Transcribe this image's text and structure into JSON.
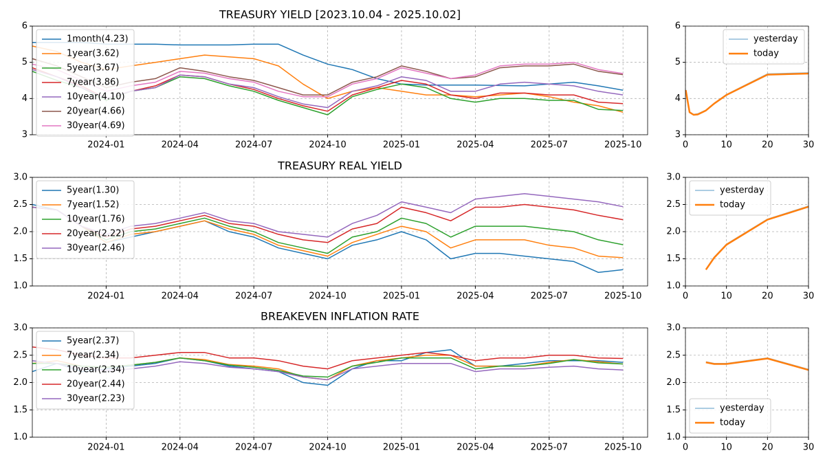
{
  "chart_data": [
    {
      "type": "line",
      "title": "TREASURY YIELD [2023.10.04 - 2025.10.02]",
      "x": [
        "2023-10",
        "2023-11",
        "2023-12",
        "2024-01",
        "2024-02",
        "2024-03",
        "2024-04",
        "2024-05",
        "2024-06",
        "2024-07",
        "2024-08",
        "2024-09",
        "2024-10",
        "2024-11",
        "2024-12",
        "2025-01",
        "2025-02",
        "2025-03",
        "2025-04",
        "2025-05",
        "2025-06",
        "2025-07",
        "2025-08",
        "2025-09",
        "2025-10"
      ],
      "xlim": [
        "2023-10",
        "2025-11"
      ],
      "xticks": [
        "2024-01",
        "2024-04",
        "2024-07",
        "2024-10",
        "2025-01",
        "2025-04",
        "2025-07",
        "2025-10"
      ],
      "ylim": [
        3,
        6
      ],
      "yticks": [
        3,
        4,
        5,
        6
      ],
      "grid": true,
      "legend": "upper left",
      "series": [
        {
          "name": "1month(4.23)",
          "color": "#1f77b4",
          "values": [
            5.55,
            5.55,
            5.55,
            5.5,
            5.5,
            5.5,
            5.48,
            5.48,
            5.48,
            5.5,
            5.5,
            5.2,
            4.95,
            4.8,
            4.55,
            4.4,
            4.37,
            4.37,
            4.37,
            4.36,
            4.35,
            4.4,
            4.45,
            4.35,
            4.23
          ]
        },
        {
          "name": "1year(3.62)",
          "color": "#ff7f0e",
          "values": [
            5.45,
            5.3,
            5.0,
            4.8,
            4.9,
            5.0,
            5.1,
            5.2,
            5.15,
            5.1,
            4.9,
            4.4,
            4.0,
            4.2,
            4.3,
            4.2,
            4.1,
            4.1,
            4.05,
            4.1,
            4.15,
            4.05,
            3.9,
            3.8,
            3.62
          ]
        },
        {
          "name": "5year(3.67)",
          "color": "#2ca02c",
          "values": [
            4.75,
            4.5,
            4.3,
            3.95,
            4.2,
            4.3,
            4.6,
            4.55,
            4.35,
            4.2,
            3.95,
            3.75,
            3.55,
            4.05,
            4.25,
            4.4,
            4.3,
            4.0,
            3.9,
            4.0,
            4.0,
            3.95,
            3.95,
            3.7,
            3.67
          ]
        },
        {
          "name": "7year(3.86)",
          "color": "#d62728",
          "values": [
            4.85,
            4.6,
            4.35,
            4.0,
            4.2,
            4.35,
            4.65,
            4.6,
            4.4,
            4.25,
            4.0,
            3.8,
            3.65,
            4.1,
            4.3,
            4.5,
            4.4,
            4.1,
            4.0,
            4.15,
            4.15,
            4.1,
            4.1,
            3.9,
            3.86
          ]
        },
        {
          "name": "10year(4.10)",
          "color": "#9467bd",
          "values": [
            4.8,
            4.6,
            4.3,
            4.0,
            4.2,
            4.3,
            4.65,
            4.6,
            4.4,
            4.3,
            4.05,
            3.85,
            3.75,
            4.2,
            4.35,
            4.6,
            4.5,
            4.2,
            4.2,
            4.4,
            4.45,
            4.4,
            4.35,
            4.2,
            4.1
          ]
        },
        {
          "name": "20year(4.66)",
          "color": "#8c564b",
          "values": [
            5.1,
            4.9,
            4.6,
            4.3,
            4.45,
            4.55,
            4.85,
            4.75,
            4.6,
            4.5,
            4.3,
            4.1,
            4.1,
            4.45,
            4.6,
            4.9,
            4.75,
            4.55,
            4.6,
            4.85,
            4.9,
            4.9,
            4.95,
            4.75,
            4.66
          ]
        },
        {
          "name": "30year(4.69)",
          "color": "#e377c2",
          "values": [
            4.95,
            4.8,
            4.5,
            4.2,
            4.35,
            4.45,
            4.75,
            4.7,
            4.55,
            4.45,
            4.2,
            4.05,
            4.05,
            4.4,
            4.55,
            4.85,
            4.7,
            4.55,
            4.65,
            4.9,
            4.95,
            4.95,
            5.0,
            4.8,
            4.69
          ]
        }
      ]
    },
    {
      "type": "line",
      "x": [
        0.083,
        1,
        2,
        3,
        5,
        7,
        10,
        20,
        30
      ],
      "xlim": [
        0,
        30
      ],
      "xticks": [
        0,
        10,
        20,
        30
      ],
      "ylim": [
        3,
        6
      ],
      "yticks": [
        3,
        4,
        5,
        6
      ],
      "grid": true,
      "legend": "upper right",
      "series": [
        {
          "name": "yesterday",
          "color": "#8fbbd9",
          "linewidth": 1.5,
          "values": [
            4.24,
            3.63,
            3.56,
            3.58,
            3.68,
            3.87,
            4.11,
            4.68,
            4.71
          ]
        },
        {
          "name": "today",
          "color": "#ff7f0e",
          "linewidth": 2.5,
          "values": [
            4.23,
            3.62,
            3.55,
            3.56,
            3.67,
            3.86,
            4.1,
            4.66,
            4.69
          ]
        }
      ]
    },
    {
      "type": "line",
      "title": "TREASURY REAL YIELD",
      "x": [
        "2023-10",
        "2023-11",
        "2023-12",
        "2024-01",
        "2024-02",
        "2024-03",
        "2024-04",
        "2024-05",
        "2024-06",
        "2024-07",
        "2024-08",
        "2024-09",
        "2024-10",
        "2024-11",
        "2024-12",
        "2025-01",
        "2025-02",
        "2025-03",
        "2025-04",
        "2025-05",
        "2025-06",
        "2025-07",
        "2025-08",
        "2025-09",
        "2025-10"
      ],
      "xlim": [
        "2023-10",
        "2025-11"
      ],
      "xticks": [
        "2024-01",
        "2024-04",
        "2024-07",
        "2024-10",
        "2025-01",
        "2025-04",
        "2025-07",
        "2025-10"
      ],
      "ylim": [
        1,
        3
      ],
      "yticks": [
        {
          "value": 1,
          "label": "1.0"
        },
        1.5,
        {
          "value": 2,
          "label": "2.0"
        },
        2.5,
        {
          "value": 3,
          "label": "3.0"
        }
      ],
      "grid": true,
      "legend": "upper left",
      "series": [
        {
          "name": "5year(1.30)",
          "color": "#1f77b4",
          "values": [
            2.5,
            2.4,
            2.1,
            1.8,
            1.9,
            2.0,
            2.1,
            2.2,
            2.0,
            1.9,
            1.7,
            1.6,
            1.5,
            1.75,
            1.85,
            2.0,
            1.85,
            1.5,
            1.6,
            1.6,
            1.55,
            1.5,
            1.45,
            1.25,
            1.3
          ]
        },
        {
          "name": "7year(1.52)",
          "color": "#ff7f0e",
          "values": [
            2.45,
            2.4,
            2.1,
            1.8,
            1.95,
            2.0,
            2.1,
            2.2,
            2.05,
            1.95,
            1.75,
            1.65,
            1.55,
            1.8,
            1.95,
            2.1,
            2.0,
            1.7,
            1.85,
            1.85,
            1.85,
            1.75,
            1.7,
            1.55,
            1.52
          ]
        },
        {
          "name": "10year(1.76)",
          "color": "#2ca02c",
          "values": [
            2.45,
            2.4,
            2.1,
            1.85,
            2.0,
            2.05,
            2.15,
            2.25,
            2.1,
            2.0,
            1.8,
            1.7,
            1.6,
            1.9,
            2.0,
            2.25,
            2.15,
            1.9,
            2.1,
            2.1,
            2.1,
            2.05,
            2.0,
            1.85,
            1.76
          ]
        },
        {
          "name": "20year(2.22)",
          "color": "#d62728",
          "values": [
            2.45,
            2.4,
            2.1,
            1.9,
            2.05,
            2.1,
            2.2,
            2.3,
            2.15,
            2.1,
            1.95,
            1.85,
            1.8,
            2.05,
            2.15,
            2.45,
            2.35,
            2.2,
            2.45,
            2.45,
            2.5,
            2.45,
            2.4,
            2.3,
            2.22
          ]
        },
        {
          "name": "30year(2.46)",
          "color": "#9467bd",
          "values": [
            2.45,
            2.4,
            2.1,
            1.95,
            2.1,
            2.15,
            2.25,
            2.35,
            2.2,
            2.15,
            2.0,
            1.95,
            1.9,
            2.15,
            2.3,
            2.55,
            2.45,
            2.35,
            2.6,
            2.65,
            2.7,
            2.65,
            2.6,
            2.55,
            2.46
          ]
        }
      ]
    },
    {
      "type": "line",
      "x": [
        5,
        7,
        10,
        20,
        30
      ],
      "xlim": [
        0,
        30
      ],
      "xticks": [
        0,
        10,
        20,
        30
      ],
      "ylim": [
        1,
        3
      ],
      "yticks": [
        {
          "value": 1,
          "label": "1.0"
        },
        1.5,
        {
          "value": 2,
          "label": "2.0"
        },
        2.5,
        {
          "value": 3,
          "label": "3.0"
        }
      ],
      "grid": true,
      "legend": "upper left",
      "series": [
        {
          "name": "yesterday",
          "color": "#8fbbd9",
          "linewidth": 1.5,
          "values": [
            1.31,
            1.53,
            1.77,
            2.23,
            2.47
          ]
        },
        {
          "name": "today",
          "color": "#ff7f0e",
          "linewidth": 2.5,
          "values": [
            1.3,
            1.52,
            1.76,
            2.22,
            2.46
          ]
        }
      ]
    },
    {
      "type": "line",
      "title": "BREAKEVEN INFLATION RATE",
      "x": [
        "2023-10",
        "2023-11",
        "2023-12",
        "2024-01",
        "2024-02",
        "2024-03",
        "2024-04",
        "2024-05",
        "2024-06",
        "2024-07",
        "2024-08",
        "2024-09",
        "2024-10",
        "2024-11",
        "2024-12",
        "2025-01",
        "2025-02",
        "2025-03",
        "2025-04",
        "2025-05",
        "2025-06",
        "2025-07",
        "2025-08",
        "2025-09",
        "2025-10"
      ],
      "xlim": [
        "2023-10",
        "2025-11"
      ],
      "xticks": [
        "2024-01",
        "2024-04",
        "2024-07",
        "2024-10",
        "2025-01",
        "2025-04",
        "2025-07",
        "2025-10"
      ],
      "ylim": [
        1,
        3
      ],
      "yticks": [
        {
          "value": 1,
          "label": "1.0"
        },
        1.5,
        {
          "value": 2,
          "label": "2.0"
        },
        2.5,
        {
          "value": 3,
          "label": "3.0"
        }
      ],
      "grid": true,
      "legend": "upper left",
      "series": [
        {
          "name": "5year(2.37)",
          "color": "#1f77b4",
          "values": [
            2.2,
            2.35,
            2.2,
            2.25,
            2.3,
            2.35,
            2.45,
            2.4,
            2.3,
            2.25,
            2.2,
            2.0,
            1.95,
            2.25,
            2.4,
            2.4,
            2.55,
            2.6,
            2.3,
            2.3,
            2.35,
            2.4,
            2.4,
            2.4,
            2.37
          ]
        },
        {
          "name": "7year(2.34)",
          "color": "#ff7f0e",
          "values": [
            2.35,
            2.4,
            2.3,
            2.28,
            2.32,
            2.37,
            2.45,
            2.42,
            2.33,
            2.3,
            2.25,
            2.1,
            2.05,
            2.3,
            2.4,
            2.45,
            2.5,
            2.5,
            2.3,
            2.3,
            2.3,
            2.37,
            2.42,
            2.38,
            2.34
          ]
        },
        {
          "name": "10year(2.34)",
          "color": "#2ca02c",
          "values": [
            2.35,
            2.35,
            2.3,
            2.28,
            2.32,
            2.37,
            2.45,
            2.4,
            2.32,
            2.28,
            2.22,
            2.12,
            2.1,
            2.3,
            2.37,
            2.45,
            2.45,
            2.45,
            2.25,
            2.3,
            2.3,
            2.35,
            2.42,
            2.36,
            2.34
          ]
        },
        {
          "name": "20year(2.44)",
          "color": "#d62728",
          "values": [
            2.65,
            2.6,
            2.5,
            2.45,
            2.45,
            2.5,
            2.55,
            2.55,
            2.45,
            2.45,
            2.4,
            2.3,
            2.25,
            2.4,
            2.45,
            2.5,
            2.55,
            2.5,
            2.4,
            2.45,
            2.45,
            2.5,
            2.5,
            2.45,
            2.44
          ]
        },
        {
          "name": "30year(2.23)",
          "color": "#9467bd",
          "values": [
            2.4,
            2.35,
            2.25,
            2.22,
            2.25,
            2.3,
            2.38,
            2.35,
            2.28,
            2.25,
            2.2,
            2.1,
            2.05,
            2.25,
            2.3,
            2.35,
            2.35,
            2.35,
            2.2,
            2.25,
            2.25,
            2.28,
            2.3,
            2.25,
            2.23
          ]
        }
      ]
    },
    {
      "type": "line",
      "x": [
        5,
        7,
        10,
        20,
        30
      ],
      "xlim": [
        0,
        30
      ],
      "xticks": [
        0,
        10,
        20,
        30
      ],
      "ylim": [
        1,
        3
      ],
      "yticks": [
        {
          "value": 1,
          "label": "1.0"
        },
        1.5,
        {
          "value": 2,
          "label": "2.0"
        },
        2.5,
        {
          "value": 3,
          "label": "3.0"
        }
      ],
      "grid": true,
      "legend": "lower left",
      "series": [
        {
          "name": "yesterday",
          "color": "#8fbbd9",
          "linewidth": 1.5,
          "values": [
            2.38,
            2.35,
            2.35,
            2.45,
            2.24
          ]
        },
        {
          "name": "today",
          "color": "#ff7f0e",
          "linewidth": 2.5,
          "values": [
            2.37,
            2.34,
            2.34,
            2.44,
            2.23
          ]
        }
      ]
    }
  ]
}
